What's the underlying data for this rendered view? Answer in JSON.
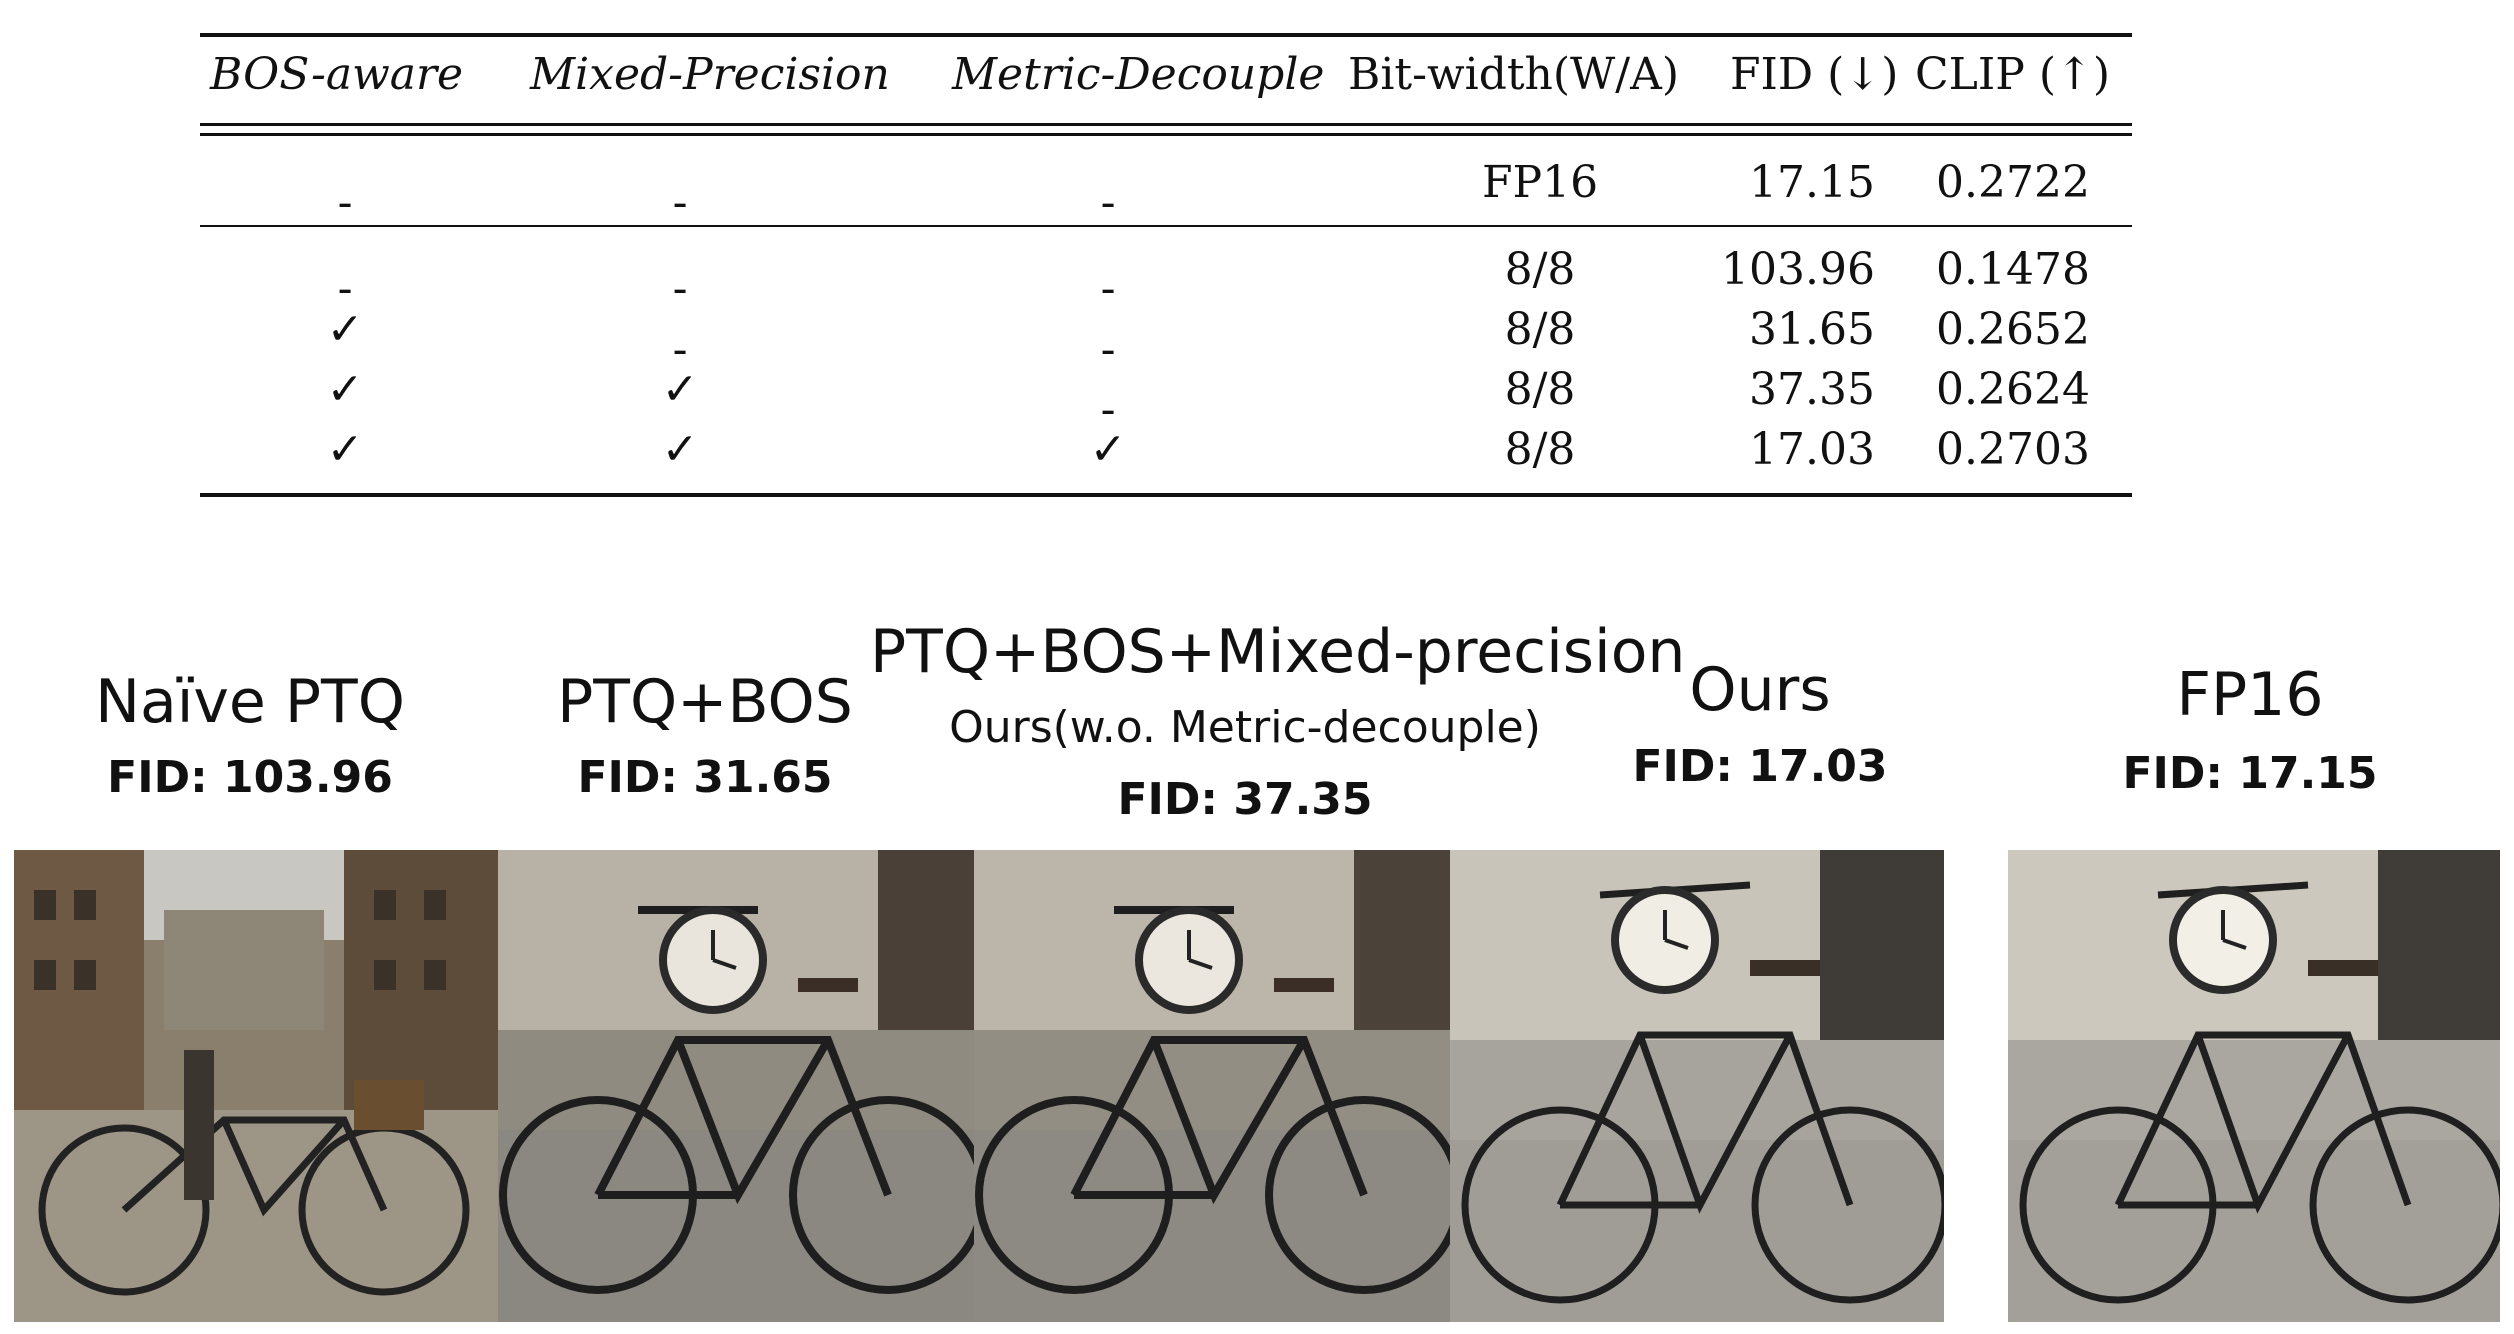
{
  "table": {
    "headers": [
      "BOS-aware",
      "Mixed-Precision",
      "Metric-Decouple",
      "Bit-width(W/A)",
      "FID (↓)",
      "CLIP (↑)"
    ],
    "rows": [
      {
        "bos": "-",
        "mixed": "-",
        "metric": "-",
        "bits": "FP16",
        "fid": "17.15",
        "clip": "0.2722"
      },
      {
        "bos": "-",
        "mixed": "-",
        "metric": "-",
        "bits": "8/8",
        "fid": "103.96",
        "clip": "0.1478"
      },
      {
        "bos": "✓",
        "mixed": "-",
        "metric": "-",
        "bits": "8/8",
        "fid": "31.65",
        "clip": "0.2652"
      },
      {
        "bos": "✓",
        "mixed": "✓",
        "metric": "-",
        "bits": "8/8",
        "fid": "37.35",
        "clip": "0.2624"
      },
      {
        "bos": "✓",
        "mixed": "✓",
        "metric": "✓",
        "bits": "8/8",
        "fid": "17.03",
        "clip": "0.2703"
      }
    ]
  },
  "panels": [
    {
      "title": "Naïve PTQ",
      "fid": "FID: 103.96"
    },
    {
      "title": "PTQ+BOS",
      "fid": "FID: 31.65"
    },
    {
      "title": "PTQ+BOS+Mixed-precision",
      "subtitle": "Ours(w.o. Metric-decouple)",
      "fid": "FID: 37.35"
    },
    {
      "title": "Ours",
      "fid": "FID: 17.03"
    },
    {
      "title": "FP16",
      "fid": "FID: 17.15"
    }
  ]
}
